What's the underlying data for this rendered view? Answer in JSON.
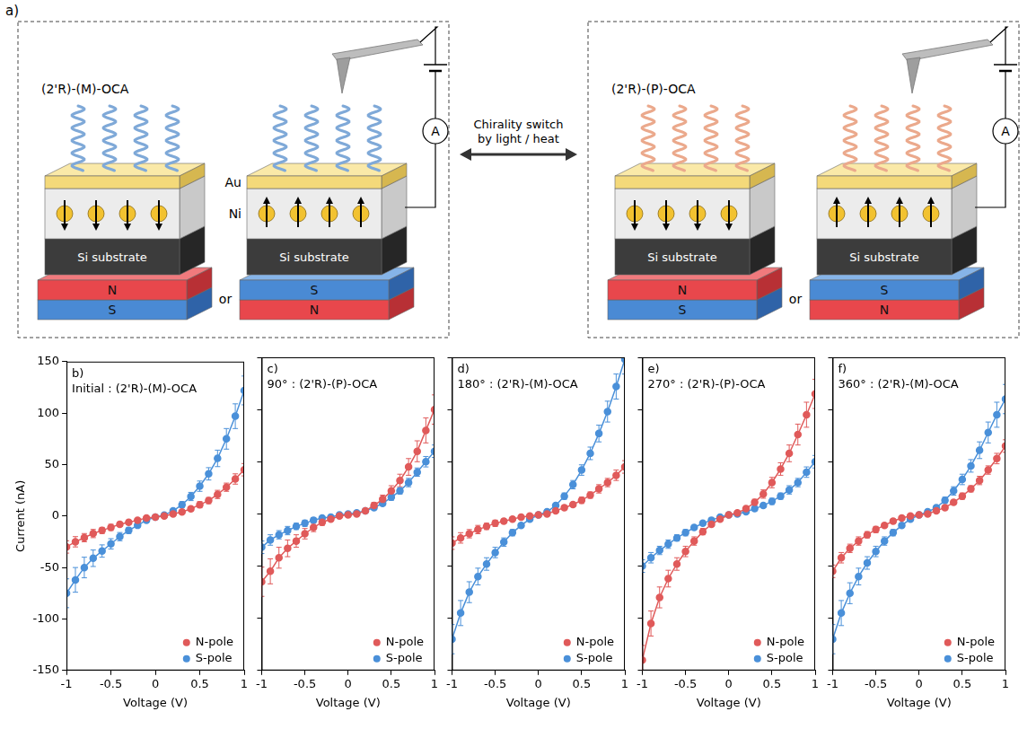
{
  "panel_a": {
    "label": "a)",
    "switch": [
      "Chirality switch",
      "by light / heat"
    ],
    "or": "or",
    "meter": "A",
    "substrate": "Si substrate",
    "layers": {
      "au": "Au",
      "ni": "Ni"
    },
    "magnets": {
      "north": "N",
      "south": "S"
    },
    "states": [
      {
        "molecule": "(2'R)-(M)-OCA"
      },
      {
        "molecule": "(2'R)-(P)-OCA"
      }
    ]
  },
  "chart_data": [
    {
      "type": "line",
      "panel": "b)",
      "title": "Initial : (2'R)-(M)-OCA",
      "xlabel": "Voltage (V)",
      "ylabel": "Current (nA)",
      "x": [
        -1,
        -0.9,
        -0.8,
        -0.7,
        -0.6,
        -0.5,
        -0.4,
        -0.3,
        -0.2,
        -0.1,
        0,
        0.1,
        0.2,
        0.3,
        0.4,
        0.5,
        0.6,
        0.7,
        0.8,
        0.9,
        1
      ],
      "series": [
        {
          "name": "N-pole",
          "color": "#e05a5a",
          "marker": "circle",
          "values": [
            -30,
            -25,
            -21,
            -17,
            -14,
            -11,
            -8,
            -6,
            -4,
            -2,
            -1,
            0,
            2,
            4,
            7,
            11,
            15,
            21,
            28,
            36,
            45
          ],
          "errors": [
            6,
            5,
            4,
            4,
            3,
            3,
            2,
            2,
            1,
            1,
            1,
            1,
            1,
            2,
            2,
            3,
            3,
            4,
            4,
            5,
            6
          ]
        },
        {
          "name": "S-pole",
          "color": "#4a90d9",
          "marker": "circle",
          "values": [
            -75,
            -62,
            -50,
            -41,
            -34,
            -27,
            -20,
            -14,
            -9,
            -4,
            -1,
            1,
            5,
            11,
            19,
            29,
            41,
            56,
            75,
            97,
            122
          ],
          "errors": [
            14,
            12,
            10,
            8,
            6,
            5,
            4,
            3,
            2,
            1,
            1,
            1,
            2,
            3,
            4,
            5,
            6,
            8,
            10,
            12,
            14
          ]
        }
      ],
      "xlim": [
        -1,
        1
      ],
      "xticks": [
        -1,
        -0.5,
        0,
        0.5,
        1
      ],
      "ylim": [
        -150,
        150
      ],
      "yticks": [
        -150,
        -100,
        -50,
        0,
        50,
        100,
        150
      ],
      "grid": false,
      "legend": "lower right"
    },
    {
      "type": "line",
      "panel": "c)",
      "title": "90° : (2'R)-(P)-OCA",
      "xlabel": "Voltage (V)",
      "x": [
        -1,
        -0.9,
        -0.8,
        -0.7,
        -0.6,
        -0.5,
        -0.4,
        -0.3,
        -0.2,
        -0.1,
        0,
        0.1,
        0.2,
        0.3,
        0.4,
        0.5,
        0.6,
        0.7,
        0.8,
        0.9,
        1
      ],
      "series": [
        {
          "name": "N-pole",
          "color": "#e05a5a",
          "marker": "circle",
          "values": [
            -65,
            -55,
            -42,
            -33,
            -26,
            -19,
            -13,
            -8,
            -5,
            -2,
            -1,
            0,
            3,
            8,
            14,
            22,
            32,
            45,
            60,
            80,
            100
          ],
          "errors": [
            14,
            12,
            10,
            8,
            6,
            5,
            4,
            3,
            2,
            1,
            1,
            1,
            2,
            3,
            4,
            5,
            6,
            8,
            10,
            12,
            14
          ]
        },
        {
          "name": "S-pole",
          "color": "#4a90d9",
          "marker": "circle",
          "values": [
            -32,
            -25,
            -20,
            -16,
            -12,
            -9,
            -6,
            -4,
            -3,
            -1,
            0,
            1,
            3,
            6,
            10,
            16,
            22,
            30,
            40,
            50,
            60
          ],
          "errors": [
            6,
            5,
            4,
            4,
            3,
            3,
            2,
            2,
            1,
            1,
            1,
            1,
            1,
            2,
            2,
            3,
            3,
            4,
            4,
            5,
            6
          ]
        }
      ],
      "xlim": [
        -1,
        1
      ],
      "xticks": [
        -1,
        -0.5,
        0,
        0.5,
        1
      ],
      "ylim": [
        -150,
        150
      ],
      "yticks": [
        -150,
        -100,
        -50,
        0,
        50,
        100,
        150
      ],
      "grid": false,
      "legend": "lower right",
      "tick_labels": "x"
    },
    {
      "type": "line",
      "panel": "d)",
      "title": "180° : (2'R)-(M)-OCA",
      "xlabel": "Voltage (V)",
      "x": [
        -1,
        -0.9,
        -0.8,
        -0.7,
        -0.6,
        -0.5,
        -0.4,
        -0.3,
        -0.2,
        -0.1,
        0,
        0.1,
        0.2,
        0.3,
        0.4,
        0.5,
        0.6,
        0.7,
        0.8,
        0.9,
        1
      ],
      "series": [
        {
          "name": "N-pole",
          "color": "#e05a5a",
          "marker": "circle",
          "values": [
            -28,
            -23,
            -19,
            -15,
            -12,
            -9,
            -7,
            -5,
            -3,
            -2,
            -1,
            0,
            3,
            6,
            9,
            13,
            18,
            24,
            30,
            37,
            45
          ],
          "errors": [
            6,
            5,
            4,
            4,
            3,
            3,
            2,
            2,
            1,
            1,
            1,
            1,
            1,
            2,
            2,
            3,
            3,
            4,
            4,
            5,
            6
          ]
        },
        {
          "name": "S-pole",
          "color": "#4a90d9",
          "marker": "circle",
          "values": [
            -120,
            -95,
            -75,
            -60,
            -48,
            -37,
            -27,
            -18,
            -11,
            -5,
            -1,
            2,
            8,
            17,
            28,
            42,
            58,
            77,
            98,
            122,
            148
          ],
          "errors": [
            14,
            12,
            10,
            8,
            6,
            5,
            4,
            3,
            2,
            1,
            1,
            1,
            2,
            3,
            4,
            5,
            6,
            8,
            10,
            12,
            14
          ]
        }
      ],
      "xlim": [
        -1,
        1
      ],
      "xticks": [
        -1,
        -0.5,
        0,
        0.5,
        1
      ],
      "ylim": [
        -150,
        150
      ],
      "yticks": [
        -150,
        -100,
        -50,
        0,
        50,
        100,
        150
      ],
      "grid": false,
      "legend": "lower right",
      "tick_labels": "x"
    },
    {
      "type": "line",
      "panel": "e)",
      "title": "270° : (2'R)-(P)-OCA",
      "xlabel": "Voltage (V)",
      "x": [
        -1,
        -0.9,
        -0.8,
        -0.7,
        -0.6,
        -0.5,
        -0.4,
        -0.3,
        -0.2,
        -0.1,
        0,
        0.1,
        0.2,
        0.3,
        0.4,
        0.5,
        0.6,
        0.7,
        0.8,
        0.9,
        1
      ],
      "series": [
        {
          "name": "N-pole",
          "color": "#e05a5a",
          "marker": "circle",
          "values": [
            -140,
            -105,
            -80,
            -62,
            -48,
            -36,
            -26,
            -17,
            -10,
            -5,
            -1,
            1,
            5,
            11,
            19,
            30,
            43,
            58,
            76,
            95,
            115
          ],
          "errors": [
            14,
            12,
            10,
            8,
            6,
            5,
            4,
            3,
            2,
            1,
            1,
            1,
            2,
            3,
            4,
            5,
            6,
            8,
            10,
            12,
            14
          ]
        },
        {
          "name": "S-pole",
          "color": "#4a90d9",
          "marker": "circle",
          "values": [
            -50,
            -42,
            -35,
            -29,
            -23,
            -18,
            -13,
            -9,
            -6,
            -3,
            -1,
            0,
            2,
            5,
            8,
            12,
            17,
            23,
            30,
            40,
            50
          ],
          "errors": [
            6,
            5,
            4,
            4,
            3,
            3,
            2,
            2,
            1,
            1,
            1,
            1,
            1,
            2,
            2,
            3,
            3,
            4,
            4,
            5,
            6
          ]
        }
      ],
      "xlim": [
        -1,
        1
      ],
      "xticks": [
        -1,
        -0.5,
        0,
        0.5,
        1
      ],
      "ylim": [
        -150,
        150
      ],
      "yticks": [
        -150,
        -100,
        -50,
        0,
        50,
        100,
        150
      ],
      "grid": false,
      "legend": "lower right",
      "tick_labels": "x"
    },
    {
      "type": "line",
      "panel": "f)",
      "title": "360° : (2'R)-(M)-OCA",
      "xlabel": "Voltage (V)",
      "x": [
        -1,
        -0.9,
        -0.8,
        -0.7,
        -0.6,
        -0.5,
        -0.4,
        -0.3,
        -0.2,
        -0.1,
        0,
        0.1,
        0.2,
        0.3,
        0.4,
        0.5,
        0.6,
        0.7,
        0.8,
        0.9,
        1
      ],
      "series": [
        {
          "name": "N-pole",
          "color": "#e05a5a",
          "marker": "circle",
          "values": [
            -55,
            -42,
            -33,
            -26,
            -20,
            -15,
            -11,
            -7,
            -4,
            -2,
            -1,
            0,
            3,
            6,
            11,
            17,
            24,
            32,
            42,
            53,
            65
          ],
          "errors": [
            6,
            5,
            4,
            4,
            3,
            3,
            2,
            2,
            1,
            1,
            1,
            1,
            1,
            2,
            2,
            3,
            3,
            4,
            4,
            5,
            6
          ]
        },
        {
          "name": "S-pole",
          "color": "#4a90d9",
          "marker": "circle",
          "values": [
            -120,
            -95,
            -76,
            -60,
            -47,
            -36,
            -26,
            -18,
            -11,
            -5,
            -1,
            2,
            6,
            13,
            22,
            33,
            46,
            61,
            78,
            95,
            110
          ],
          "errors": [
            14,
            12,
            10,
            8,
            6,
            5,
            4,
            3,
            2,
            1,
            1,
            1,
            2,
            3,
            4,
            5,
            6,
            8,
            10,
            12,
            14
          ]
        }
      ],
      "xlim": [
        -1,
        1
      ],
      "xticks": [
        -1,
        -0.5,
        0,
        0.5,
        1
      ],
      "ylim": [
        -150,
        150
      ],
      "yticks": [
        -150,
        -100,
        -50,
        0,
        50,
        100,
        150
      ],
      "grid": false,
      "legend": "lower right",
      "tick_labels": "x"
    }
  ]
}
